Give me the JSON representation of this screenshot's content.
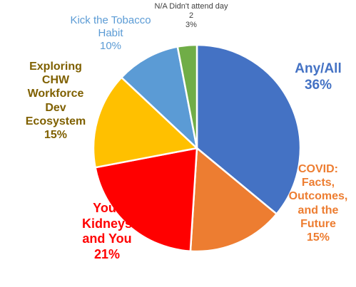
{
  "chart_data": {
    "type": "pie",
    "categories": [
      "Any/All",
      "COVID: Facts, Outcomes, and the Future",
      "Your Kidneys and You",
      "Exploring CHW Workforce Dev Ecosystem",
      "Kick the Tobacco Habit",
      "N/A Didn't attend day 2"
    ],
    "values": [
      36,
      15,
      21,
      15,
      10,
      3
    ],
    "value_labels": [
      "36%",
      "15%",
      "21%",
      "15%",
      "10%",
      "3%"
    ],
    "colors": [
      "#4472c4",
      "#ed7d31",
      "#ff0000",
      "#ffc000",
      "#5b9bd5",
      "#70ad47"
    ]
  }
}
